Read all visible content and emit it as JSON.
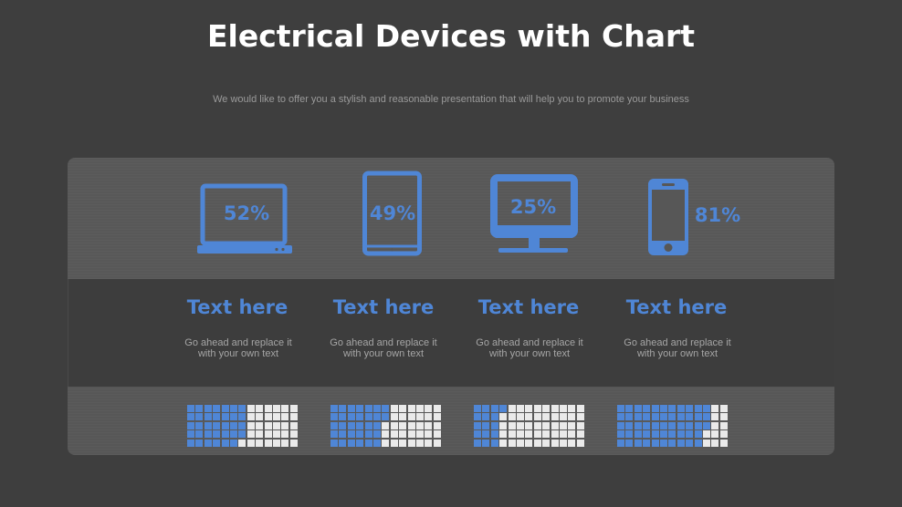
{
  "header": {
    "title": "Electrical Devices with Chart",
    "subtitle": "We would like to offer you a stylish and reasonable presentation that will help you to promote your business"
  },
  "devices": [
    {
      "icon": "laptop-icon",
      "percent_label": "52%",
      "value": 52,
      "title": "Text here",
      "desc_line1": "Go ahead and replace it",
      "desc_line2": "with your own text"
    },
    {
      "icon": "tablet-icon",
      "percent_label": "49%",
      "value": 49,
      "title": "Text here",
      "desc_line1": "Go ahead and replace it",
      "desc_line2": "with your own text"
    },
    {
      "icon": "monitor-icon",
      "percent_label": "25%",
      "value": 25,
      "title": "Text here",
      "desc_line1": "Go ahead and replace it",
      "desc_line2": "with your own text"
    },
    {
      "icon": "smartphone-icon",
      "percent_label": "81%",
      "value": 81,
      "title": "Text here",
      "desc_line1": "Go ahead and replace it",
      "desc_line2": "with your own text"
    }
  ],
  "colors": {
    "accent": "#4f86d6",
    "background": "#3e3e3e",
    "empty_cell": "#eaeaea"
  }
}
